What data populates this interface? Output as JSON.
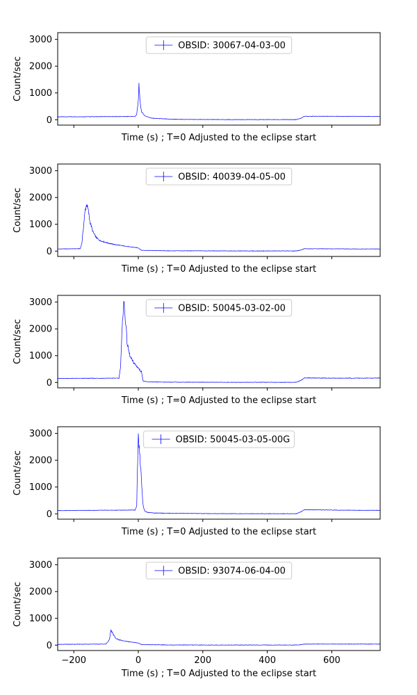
{
  "figure": {
    "colors": {
      "series": "#0000ff",
      "axes": "#000000",
      "background": "#ffffff",
      "legend_border": "#cccccc"
    }
  },
  "chart_data": [
    {
      "type": "line",
      "legend": "OBSID: 30067-04-03-00",
      "legend_placement": "upper-center",
      "xlabel": "Time (s) ; T=0 Adjusted to the eclipse start",
      "ylabel": "Count/sec",
      "xlim": [
        -250,
        750
      ],
      "ylim": [
        -200,
        3250
      ],
      "xticks": [
        -200,
        0,
        200,
        400,
        600
      ],
      "yticks": [
        0,
        1000,
        2000,
        3000
      ],
      "show_xtick_labels": false,
      "grid": false,
      "x": [
        -250,
        -10,
        -5,
        0,
        2,
        5,
        10,
        20,
        40,
        80,
        120,
        200,
        300,
        400,
        490,
        505,
        515,
        600,
        700,
        750
      ],
      "y": [
        110,
        120,
        200,
        700,
        1350,
        700,
        300,
        150,
        60,
        30,
        15,
        8,
        5,
        5,
        5,
        60,
        130,
        130,
        125,
        120
      ]
    },
    {
      "type": "line",
      "legend": "OBSID: 40039-04-05-00",
      "legend_placement": "upper-center",
      "xlabel": "Time (s) ; T=0 Adjusted to the eclipse start",
      "ylabel": "Count/sec",
      "xlim": [
        -250,
        750
      ],
      "ylim": [
        -200,
        3250
      ],
      "xticks": [
        -200,
        0,
        200,
        400,
        600
      ],
      "yticks": [
        0,
        1000,
        2000,
        3000
      ],
      "show_xtick_labels": false,
      "grid": false,
      "x": [
        -250,
        -180,
        -175,
        -170,
        -165,
        -160,
        -155,
        -150,
        -140,
        -130,
        -120,
        -100,
        -80,
        -60,
        -40,
        -20,
        0,
        10,
        100,
        200,
        300,
        400,
        490,
        505,
        515,
        600,
        700,
        750
      ],
      "y": [
        80,
        90,
        300,
        900,
        1500,
        1750,
        1500,
        1100,
        700,
        500,
        400,
        320,
        260,
        220,
        180,
        150,
        120,
        30,
        10,
        10,
        5,
        5,
        5,
        40,
        90,
        85,
        80,
        80
      ]
    },
    {
      "type": "line",
      "legend": "OBSID: 50045-03-02-00",
      "legend_placement": "upper-center",
      "xlabel": "Time (s) ; T=0 Adjusted to the eclipse start",
      "ylabel": "Count/sec",
      "xlim": [
        -250,
        750
      ],
      "ylim": [
        -200,
        3250
      ],
      "xticks": [
        -200,
        0,
        200,
        400,
        600
      ],
      "yticks": [
        0,
        1000,
        2000,
        3000
      ],
      "show_xtick_labels": false,
      "grid": false,
      "x": [
        -250,
        -60,
        -55,
        -50,
        -47,
        -45,
        -42,
        -38,
        -35,
        -30,
        -25,
        -20,
        -15,
        -10,
        -5,
        0,
        5,
        10,
        15,
        30,
        100,
        200,
        300,
        400,
        490,
        505,
        515,
        600,
        700,
        750
      ],
      "y": [
        150,
        160,
        600,
        2000,
        2700,
        3050,
        2600,
        2100,
        1500,
        1200,
        950,
        850,
        750,
        680,
        600,
        550,
        450,
        400,
        50,
        20,
        10,
        8,
        5,
        5,
        5,
        80,
        170,
        160,
        160,
        165
      ]
    },
    {
      "type": "line",
      "legend": "OBSID: 50045-03-05-00G",
      "legend_placement": "upper-center",
      "xlabel": "Time (s) ; T=0 Adjusted to the eclipse start",
      "ylabel": "Count/sec",
      "xlim": [
        -250,
        750
      ],
      "ylim": [
        -200,
        3250
      ],
      "xticks": [
        -200,
        0,
        200,
        400,
        600
      ],
      "yticks": [
        0,
        1000,
        2000,
        3000
      ],
      "show_xtick_labels": false,
      "grid": false,
      "x": [
        -250,
        -10,
        -5,
        -3,
        0,
        2,
        4,
        6,
        9,
        12,
        15,
        20,
        30,
        50,
        100,
        200,
        300,
        400,
        490,
        505,
        515,
        600,
        700,
        750
      ],
      "y": [
        120,
        140,
        300,
        1500,
        2900,
        2600,
        2300,
        1900,
        1500,
        800,
        300,
        100,
        50,
        30,
        20,
        10,
        5,
        5,
        5,
        80,
        150,
        140,
        130,
        130
      ]
    },
    {
      "type": "line",
      "legend": "OBSID: 93074-06-04-00",
      "legend_placement": "upper-center",
      "xlabel": "Time (s) ; T=0 Adjusted to the eclipse start",
      "ylabel": "Count/sec",
      "xlim": [
        -250,
        750
      ],
      "ylim": [
        -200,
        3250
      ],
      "xticks": [
        -200,
        0,
        200,
        400,
        600
      ],
      "yticks": [
        0,
        1000,
        2000,
        3000
      ],
      "show_xtick_labels": true,
      "grid": false,
      "x": [
        -250,
        -100,
        -90,
        -85,
        -80,
        -75,
        -70,
        -60,
        -50,
        -40,
        -30,
        -20,
        -10,
        0,
        10,
        100,
        200,
        300,
        400,
        490,
        505,
        515,
        600,
        700,
        750
      ],
      "y": [
        30,
        40,
        200,
        550,
        450,
        350,
        250,
        200,
        170,
        150,
        130,
        110,
        100,
        80,
        20,
        8,
        5,
        5,
        5,
        5,
        20,
        40,
        40,
        40,
        40
      ]
    }
  ]
}
